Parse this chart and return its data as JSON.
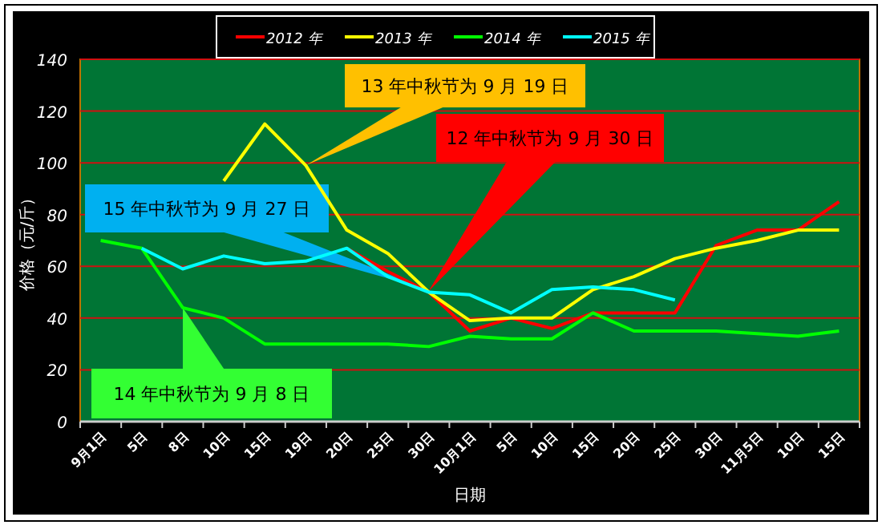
{
  "chart_data": {
    "type": "line",
    "xlabel": "日期",
    "ylabel": "价格（元/斤）",
    "categories": [
      "9月1日",
      "5日",
      "8日",
      "10日",
      "15日",
      "19日",
      "20日",
      "25日",
      "30日",
      "10月1日",
      "5日",
      "10日",
      "15日",
      "20日",
      "25日",
      "30日",
      "11月5日",
      "10日",
      "15日"
    ],
    "ylim": [
      0,
      140
    ],
    "yticks": [
      0,
      20,
      40,
      60,
      80,
      100,
      120,
      140
    ],
    "grid": "y",
    "legend": "top",
    "marker": "none",
    "line_style": "solid",
    "series": [
      {
        "name": "2012 年",
        "color": "#ff0000",
        "values": [
          null,
          null,
          null,
          null,
          null,
          null,
          67,
          58,
          50,
          35,
          40,
          36,
          42,
          42,
          42,
          68,
          74,
          74,
          85
        ]
      },
      {
        "name": "2013 年",
        "color": "#ffff00",
        "values": [
          null,
          null,
          null,
          93,
          115,
          99,
          74,
          65,
          50,
          39,
          40,
          40,
          51,
          56,
          63,
          67,
          70,
          74,
          74
        ]
      },
      {
        "name": "2014 年",
        "color": "#00ff00",
        "values": [
          70,
          67,
          44,
          40,
          30,
          30,
          30,
          30,
          29,
          33,
          32,
          32,
          42,
          35,
          35,
          35,
          34,
          33,
          35
        ]
      },
      {
        "name": "2015 年",
        "color": "#00ffff",
        "values": [
          null,
          67,
          59,
          64,
          61,
          62,
          67,
          56,
          50,
          49,
          42,
          51,
          52,
          51,
          47,
          null,
          null,
          null,
          null
        ]
      }
    ],
    "annotations": [
      "13 年中秋节为 9 月 19 日",
      "12 年中秋节为 9 月 30 日",
      "15 年中秋节为 9 月 27 日",
      "14 年中秋节为 9 月 8 日"
    ]
  }
}
